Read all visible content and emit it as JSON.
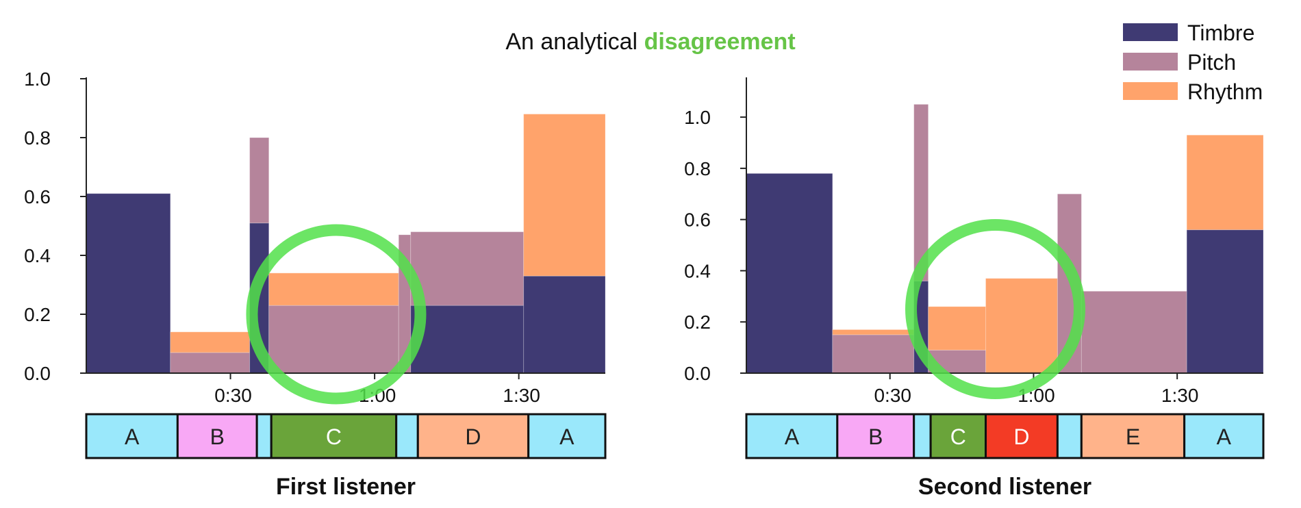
{
  "title": {
    "prefix": "An analytical",
    "highlight": "disagreement"
  },
  "colors": {
    "Timbre": "#3f3a73",
    "Pitch": "#b5849b",
    "Rhythm": "#ffa36b",
    "highlight": "#66c447",
    "circle": "#52e04a",
    "section_A": "#9ae8fb",
    "section_B": "#f8a8f5",
    "section_C": "#6aa43a",
    "section_D_first": "#ffb38a",
    "section_D_second": "#f33b25",
    "section_E": "#ffb38a"
  },
  "legend": {
    "placement": "top-right",
    "items": [
      "Timbre",
      "Pitch",
      "Rhythm"
    ]
  },
  "chart_data": [
    {
      "type": "bar",
      "subtitle": "First listener",
      "stacked": true,
      "x_unit": "seconds",
      "xlim": [
        0,
        108
      ],
      "ylim": [
        0,
        1.0
      ],
      "yticks": [
        0.0,
        0.2,
        0.4,
        0.6,
        0.8,
        1.0
      ],
      "ytick_labels": [
        "0.0",
        "0.2",
        "0.4",
        "0.6",
        "0.8",
        "1.0"
      ],
      "xticks": [
        30,
        60,
        90
      ],
      "xtick_labels": [
        "0:30",
        "1:00",
        "1:30"
      ],
      "segments": [
        {
          "start": 0,
          "end": 17.5,
          "Timbre": 0.61,
          "Pitch": 0.0,
          "Rhythm": 0.0
        },
        {
          "start": 17.5,
          "end": 34,
          "Timbre": 0.0,
          "Pitch": 0.07,
          "Rhythm": 0.07
        },
        {
          "start": 34,
          "end": 38,
          "Timbre": 0.51,
          "Pitch": 0.29,
          "Rhythm": 0.0
        },
        {
          "start": 38,
          "end": 65,
          "Timbre": 0.0,
          "Pitch": 0.23,
          "Rhythm": 0.11
        },
        {
          "start": 65,
          "end": 67.5,
          "Timbre": 0.0,
          "Pitch": 0.47,
          "Rhythm": 0.0
        },
        {
          "start": 67.5,
          "end": 91,
          "Timbre": 0.23,
          "Pitch": 0.25,
          "Rhythm": 0.0
        },
        {
          "start": 91,
          "end": 108,
          "Timbre": 0.33,
          "Pitch": 0.0,
          "Rhythm": 0.55
        }
      ],
      "sections": [
        {
          "label": "A",
          "start": 0,
          "end": 19,
          "color_key": "section_A"
        },
        {
          "label": "B",
          "start": 19,
          "end": 35.5,
          "color_key": "section_B"
        },
        {
          "label": "",
          "start": 35.5,
          "end": 38.5,
          "color_key": "section_A"
        },
        {
          "label": "C",
          "start": 38.5,
          "end": 64.5,
          "color_key": "section_C"
        },
        {
          "label": "",
          "start": 64.5,
          "end": 69,
          "color_key": "section_A"
        },
        {
          "label": "D",
          "start": 69,
          "end": 92,
          "color_key": "section_D_first"
        },
        {
          "label": "A",
          "start": 92,
          "end": 108,
          "color_key": "section_A"
        }
      ],
      "highlight_circle": {
        "x": 52,
        "y": 0.2
      }
    },
    {
      "type": "bar",
      "subtitle": "Second listener",
      "stacked": true,
      "x_unit": "seconds",
      "xlim": [
        0,
        108
      ],
      "ylim": [
        0,
        1.15
      ],
      "yticks": [
        0.0,
        0.2,
        0.4,
        0.6,
        0.8,
        1.0
      ],
      "ytick_labels": [
        "0.0",
        "0.2",
        "0.4",
        "0.6",
        "0.8",
        "1.0"
      ],
      "xticks": [
        30,
        60,
        90
      ],
      "xtick_labels": [
        "0:30",
        "1:00",
        "1:30"
      ],
      "segments": [
        {
          "start": 0,
          "end": 18,
          "Timbre": 0.78,
          "Pitch": 0.0,
          "Rhythm": 0.0
        },
        {
          "start": 18,
          "end": 35,
          "Timbre": 0.0,
          "Pitch": 0.15,
          "Rhythm": 0.02
        },
        {
          "start": 35,
          "end": 38,
          "Timbre": 0.36,
          "Pitch": 0.69,
          "Rhythm": 0.0
        },
        {
          "start": 38,
          "end": 50,
          "Timbre": 0.0,
          "Pitch": 0.09,
          "Rhythm": 0.17
        },
        {
          "start": 50,
          "end": 65,
          "Timbre": 0.0,
          "Pitch": 0.0,
          "Rhythm": 0.37
        },
        {
          "start": 65,
          "end": 70,
          "Timbre": 0.0,
          "Pitch": 0.7,
          "Rhythm": 0.0
        },
        {
          "start": 70,
          "end": 92,
          "Timbre": 0.0,
          "Pitch": 0.32,
          "Rhythm": 0.0
        },
        {
          "start": 92,
          "end": 108,
          "Timbre": 0.56,
          "Pitch": 0.0,
          "Rhythm": 0.37
        }
      ],
      "sections": [
        {
          "label": "A",
          "start": 0,
          "end": 19,
          "color_key": "section_A"
        },
        {
          "label": "B",
          "start": 19,
          "end": 35,
          "color_key": "section_B"
        },
        {
          "label": "",
          "start": 35,
          "end": 38.5,
          "color_key": "section_A"
        },
        {
          "label": "C",
          "start": 38.5,
          "end": 50,
          "color_key": "section_C"
        },
        {
          "label": "D",
          "start": 50,
          "end": 65,
          "color_key": "section_D_second"
        },
        {
          "label": "",
          "start": 65,
          "end": 70,
          "color_key": "section_A"
        },
        {
          "label": "E",
          "start": 70,
          "end": 91.5,
          "color_key": "section_E"
        },
        {
          "label": "A",
          "start": 91.5,
          "end": 108,
          "color_key": "section_A"
        }
      ],
      "highlight_circle": {
        "x": 52,
        "y": 0.25
      }
    }
  ]
}
